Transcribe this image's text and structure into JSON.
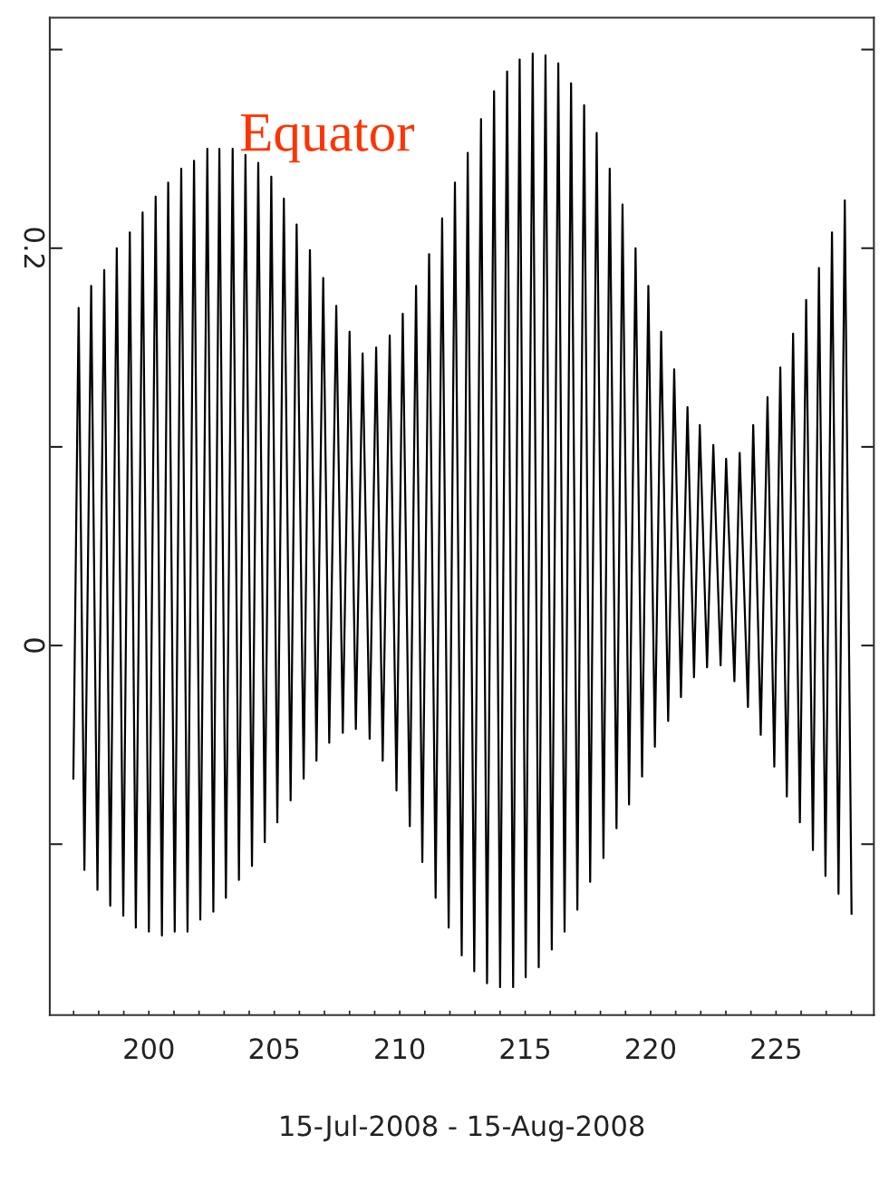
{
  "chart_data": {
    "type": "line",
    "xlabel": "15-Jul-2008 - 15-Aug-2008",
    "annotations": [
      "Equator"
    ],
    "x": [
      196.99,
      197.2,
      197.43,
      197.7,
      197.95,
      198.22,
      198.46,
      198.72,
      198.98,
      199.24,
      199.48,
      199.75,
      200.0,
      200.27,
      200.52,
      200.77,
      201.03,
      201.29,
      201.54,
      201.8,
      202.05,
      202.33,
      202.57,
      202.81,
      203.07,
      203.34,
      203.59,
      203.85,
      204.11,
      204.36,
      204.62,
      204.88,
      205.12,
      205.38,
      205.65,
      205.89,
      206.17,
      206.42,
      206.68,
      206.95,
      207.19,
      207.47,
      207.73,
      208.0,
      208.25,
      208.52,
      208.8,
      209.06,
      209.32,
      209.6,
      209.87,
      210.12,
      210.4,
      210.65,
      210.9,
      211.17,
      211.43,
      211.69,
      211.95,
      212.2,
      212.47,
      212.71,
      212.97,
      213.24,
      213.48,
      213.76,
      214.0,
      214.28,
      214.52,
      214.78,
      215.02,
      215.3,
      215.54,
      215.81,
      216.06,
      216.32,
      216.57,
      216.83,
      217.08,
      217.35,
      217.59,
      217.85,
      218.12,
      218.37,
      218.64,
      218.88,
      219.14,
      219.4,
      219.66,
      219.91,
      220.17,
      220.42,
      220.7,
      220.94,
      221.21,
      221.47,
      221.73,
      221.96,
      222.25,
      222.5,
      222.79,
      223.01,
      223.34,
      223.55,
      223.88,
      224.09,
      224.39,
      224.66,
      224.93,
      225.17,
      225.43,
      225.68,
      225.95,
      226.2,
      226.47,
      226.71,
      226.97,
      227.23,
      227.49,
      227.74,
      228.01
    ],
    "series": [
      {
        "color": "#000000",
        "values": [
          -0.067,
          0.17,
          -0.113,
          0.181,
          -0.123,
          0.189,
          -0.131,
          0.2,
          -0.136,
          0.208,
          -0.142,
          0.218,
          -0.144,
          0.226,
          -0.146,
          0.233,
          -0.144,
          0.24,
          -0.144,
          0.244,
          -0.138,
          0.25,
          -0.134,
          0.25,
          -0.127,
          0.25,
          -0.118,
          0.247,
          -0.111,
          0.243,
          -0.099,
          0.236,
          -0.089,
          0.225,
          -0.078,
          0.212,
          -0.067,
          0.199,
          -0.058,
          0.185,
          -0.049,
          0.171,
          -0.044,
          0.158,
          -0.042,
          0.147,
          -0.047,
          0.15,
          -0.058,
          0.156,
          -0.073,
          0.167,
          -0.091,
          0.181,
          -0.109,
          0.197,
          -0.127,
          0.215,
          -0.142,
          0.233,
          -0.156,
          0.248,
          -0.164,
          0.265,
          -0.17,
          0.279,
          -0.172,
          0.289,
          -0.172,
          0.295,
          -0.167,
          0.298,
          -0.162,
          0.297,
          -0.153,
          0.293,
          -0.144,
          0.283,
          -0.133,
          0.272,
          -0.119,
          0.258,
          -0.107,
          0.24,
          -0.092,
          0.222,
          -0.08,
          0.2,
          -0.066,
          0.181,
          -0.051,
          0.158,
          -0.038,
          0.139,
          -0.026,
          0.12,
          -0.016,
          0.111,
          -0.011,
          0.101,
          -0.01,
          0.094,
          -0.018,
          0.097,
          -0.031,
          0.111,
          -0.045,
          0.125,
          -0.061,
          0.14,
          -0.076,
          0.157,
          -0.089,
          0.174,
          -0.103,
          0.19,
          -0.116,
          0.208,
          -0.125,
          0.224,
          -0.135
        ]
      }
    ],
    "xlim": [
      196.05,
      228.9
    ],
    "ylim": [
      -0.186,
      0.316
    ],
    "xticks": [
      {
        "value": 197,
        "label": null
      },
      {
        "value": 198,
        "label": null
      },
      {
        "value": 199,
        "label": null
      },
      200,
      {
        "value": 201,
        "label": null
      },
      {
        "value": 202,
        "label": null
      },
      {
        "value": 203,
        "label": null
      },
      {
        "value": 204,
        "label": null
      },
      205,
      {
        "value": 206,
        "label": null
      },
      {
        "value": 207,
        "label": null
      },
      {
        "value": 208,
        "label": null
      },
      {
        "value": 209,
        "label": null
      },
      210,
      {
        "value": 211,
        "label": null
      },
      {
        "value": 212,
        "label": null
      },
      {
        "value": 213,
        "label": null
      },
      {
        "value": 214,
        "label": null
      },
      215,
      {
        "value": 216,
        "label": null
      },
      {
        "value": 217,
        "label": null
      },
      {
        "value": 218,
        "label": null
      },
      {
        "value": 219,
        "label": null
      },
      220,
      {
        "value": 221,
        "label": null
      },
      {
        "value": 222,
        "label": null
      },
      {
        "value": 223,
        "label": null
      },
      {
        "value": 224,
        "label": null
      },
      225,
      {
        "value": 226,
        "label": null
      },
      {
        "value": 227,
        "label": null
      },
      {
        "value": 228,
        "label": null
      }
    ],
    "yticks": [
      {
        "value": -0.1,
        "label": null
      },
      0,
      {
        "value": 0.1,
        "label": null
      },
      0.2,
      {
        "value": 0.3,
        "label": null
      }
    ],
    "grid": false,
    "legend": false,
    "marker": "none",
    "line_style": "solid"
  }
}
